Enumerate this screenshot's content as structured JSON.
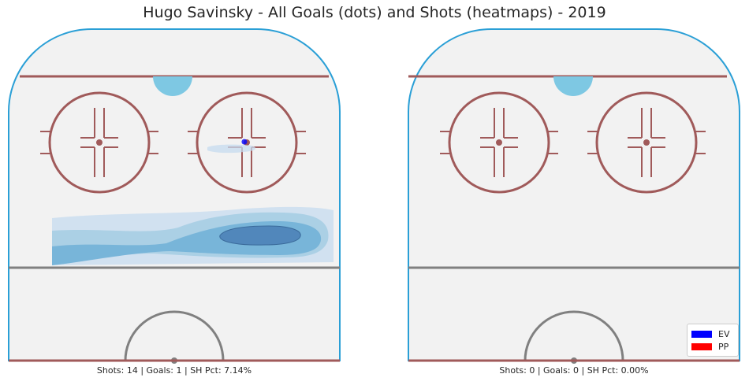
{
  "title": "Hugo Savinsky - All Goals (dots) and Shots (heatmaps) - 2019",
  "colors": {
    "rink_border": "#2a9fd6",
    "ice": "#f2f2f2",
    "red_line": "#a05a5a",
    "blue_line": "#808080",
    "crease": "#7ec8e3",
    "heat": [
      "#c6dbef",
      "#9ecae1",
      "#6baed6",
      "#4a7fb5"
    ],
    "ev": "#0000ff",
    "pp": "#ff0000"
  },
  "legend": {
    "placement": "bottom-right",
    "items": [
      {
        "label": "EV",
        "color": "#0000ff"
      },
      {
        "label": "PP",
        "color": "#ff0000"
      }
    ]
  },
  "chart_data": [
    {
      "type": "heatmap",
      "panel": "left",
      "stats_text": "Shots: 14 | Goals: 1 | SH Pct: 7.14%",
      "shots": 14,
      "goals": 1,
      "sh_pct": 7.14,
      "goal_points": [
        {
          "x": 18,
          "y": 66,
          "strength": "EV"
        }
      ],
      "shot_density_levels": 4
    },
    {
      "type": "heatmap",
      "panel": "right",
      "stats_text": "Shots: 0 | Goals: 0 | SH Pct: 0.00%",
      "shots": 0,
      "goals": 0,
      "sh_pct": 0.0,
      "goal_points": [],
      "shot_density_levels": 0
    }
  ]
}
